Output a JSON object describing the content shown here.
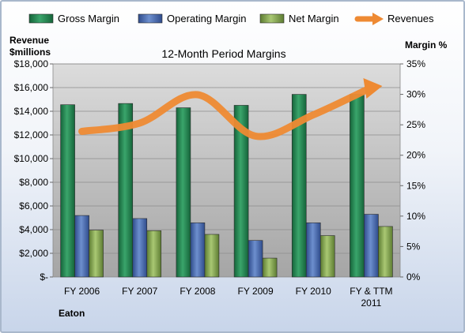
{
  "chart_data": {
    "type": "bar",
    "title": "12-Month Period Margins",
    "company": "Eaton",
    "ylabel_left": [
      "Revenue",
      "$millions"
    ],
    "ylabel_right": "Margin %",
    "ylim_left": [
      0,
      18000
    ],
    "ylim_right": [
      0,
      35
    ],
    "yticks_left": [
      "$-",
      "$2,000",
      "$4,000",
      "$6,000",
      "$8,000",
      "$10,000",
      "$12,000",
      "$14,000",
      "$16,000",
      "$18,000"
    ],
    "yticks_right": [
      "0%",
      "5%",
      "10%",
      "15%",
      "20%",
      "25%",
      "30%",
      "35%"
    ],
    "categories": [
      "FY 2006",
      "FY 2007",
      "FY 2008",
      "FY 2009",
      "FY 2010",
      "FY & TTM 2011"
    ],
    "series": [
      {
        "name": "Gross Margin",
        "kind": "bar",
        "axis": "right",
        "color": "#2e8b57",
        "values": [
          28.3,
          28.5,
          27.8,
          28.2,
          30.0,
          30.0
        ]
      },
      {
        "name": "Operating Margin",
        "kind": "bar",
        "axis": "right",
        "color": "#4f6fb3",
        "values": [
          10.1,
          9.6,
          8.9,
          6.0,
          8.9,
          10.3
        ]
      },
      {
        "name": "Net Margin",
        "kind": "bar",
        "axis": "right",
        "color": "#8faf5a",
        "values": [
          7.7,
          7.6,
          7.0,
          3.1,
          6.8,
          8.3
        ]
      },
      {
        "name": "Revenues",
        "kind": "line",
        "axis": "left",
        "color": "#f08c37",
        "values": [
          12300,
          13000,
          15400,
          11900,
          13700,
          16000
        ]
      }
    ],
    "grid": true,
    "legend_position": "top"
  }
}
